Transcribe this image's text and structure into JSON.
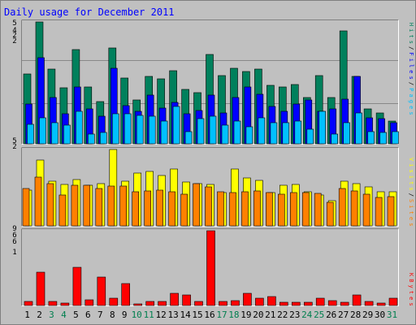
{
  "chart_data": {
    "type": "bar",
    "title": "Daily usage for December 2011",
    "days": [
      "1",
      "2",
      "3",
      "4",
      "5",
      "6",
      "7",
      "8",
      "9",
      "10",
      "11",
      "12",
      "13",
      "14",
      "15",
      "16",
      "17",
      "18",
      "19",
      "20",
      "21",
      "22",
      "23",
      "24",
      "25",
      "26",
      "27",
      "28",
      "29",
      "30",
      "31"
    ],
    "weekend_days": [
      "3",
      "4",
      "10",
      "11",
      "17",
      "18",
      "24",
      "25",
      "31"
    ],
    "colors": {
      "frame": "#7f7f7f",
      "panel": "#c0c0c0",
      "grid": "#888888",
      "title": "#0000ff",
      "weekday_label": "#000000",
      "weekend_label": "#007f4f",
      "hits": "#00805c",
      "files": "#0000ff",
      "pages": "#00c0ff",
      "visits": "#ffff00",
      "sites": "#ff8000",
      "kbytes": "#ff0000"
    },
    "panels": [
      {
        "name": "top",
        "axis_labels": [
          "5",
          "4",
          "2",
          "2"
        ],
        "legend": [
          "H",
          "i",
          "t",
          "s",
          "/",
          "F",
          "i",
          "l",
          "e",
          "s",
          "/",
          "P",
          "a",
          "g",
          "e",
          "s"
        ],
        "series": [
          {
            "name": "Hits",
            "values": [
              56,
              98,
              60,
              45,
              76,
              46,
              34,
              77,
              53,
              35,
              54,
              52,
              59,
              44,
              41,
              72,
              55,
              61,
              58,
              60,
              47,
              46,
              48,
              37,
              55,
              37,
              91,
              54,
              28,
              25,
              18
            ]
          },
          {
            "name": "Files",
            "values": [
              32,
              69,
              37,
              24,
              46,
              28,
              22,
              61,
              31,
              26,
              39,
              29,
              33,
              24,
              27,
              39,
              25,
              37,
              46,
              40,
              30,
              26,
              32,
              35,
              26,
              28,
              36,
              54,
              21,
              20,
              17
            ]
          },
          {
            "name": "Pages",
            "values": [
              16,
              21,
              17,
              15,
              26,
              8,
              9,
              24,
              24,
              23,
              22,
              18,
              30,
              10,
              20,
              22,
              15,
              18,
              14,
              21,
              17,
              17,
              18,
              12,
              26,
              8,
              17,
              25,
              10,
              9,
              10
            ]
          }
        ]
      },
      {
        "name": "middle",
        "axis_labels": [
          "5",
          "2"
        ],
        "legend": [
          "V",
          "i",
          "s",
          "i",
          "t",
          "s",
          "/",
          "S",
          "i",
          "t",
          "e",
          "s"
        ],
        "series": [
          {
            "name": "Visits",
            "values": [
              43,
              78,
              53,
              49,
              55,
              48,
              50,
              91,
              53,
              63,
              65,
              60,
              68,
              52,
              50,
              49,
              40,
              68,
              57,
              54,
              40,
              48,
              49,
              41,
              37,
              30,
              53,
              50,
              46,
              41,
              41
            ]
          },
          {
            "name": "Sites",
            "values": [
              45,
              58,
              50,
              37,
              48,
              48,
              45,
              47,
              47,
              41,
              42,
              43,
              41,
              38,
              50,
              46,
              41,
              40,
              41,
              42,
              40,
              38,
              40,
              40,
              39,
              28,
              45,
              42,
              38,
              34,
              35
            ]
          }
        ]
      },
      {
        "name": "bottom",
        "axis_labels": [
          "9",
          "6",
          "6",
          "1"
        ],
        "legend": [
          "K",
          "B",
          "y",
          "t",
          "e",
          "s"
        ],
        "series": [
          {
            "name": "KBytes",
            "values": [
              5,
              43,
              5,
              3,
              50,
              7,
              37,
              9,
              28,
              2,
              5,
              5,
              16,
              14,
              5,
              97,
              5,
              6,
              16,
              10,
              12,
              4,
              4,
              4,
              10,
              6,
              4,
              14,
              5,
              3,
              10
            ]
          }
        ]
      }
    ]
  }
}
